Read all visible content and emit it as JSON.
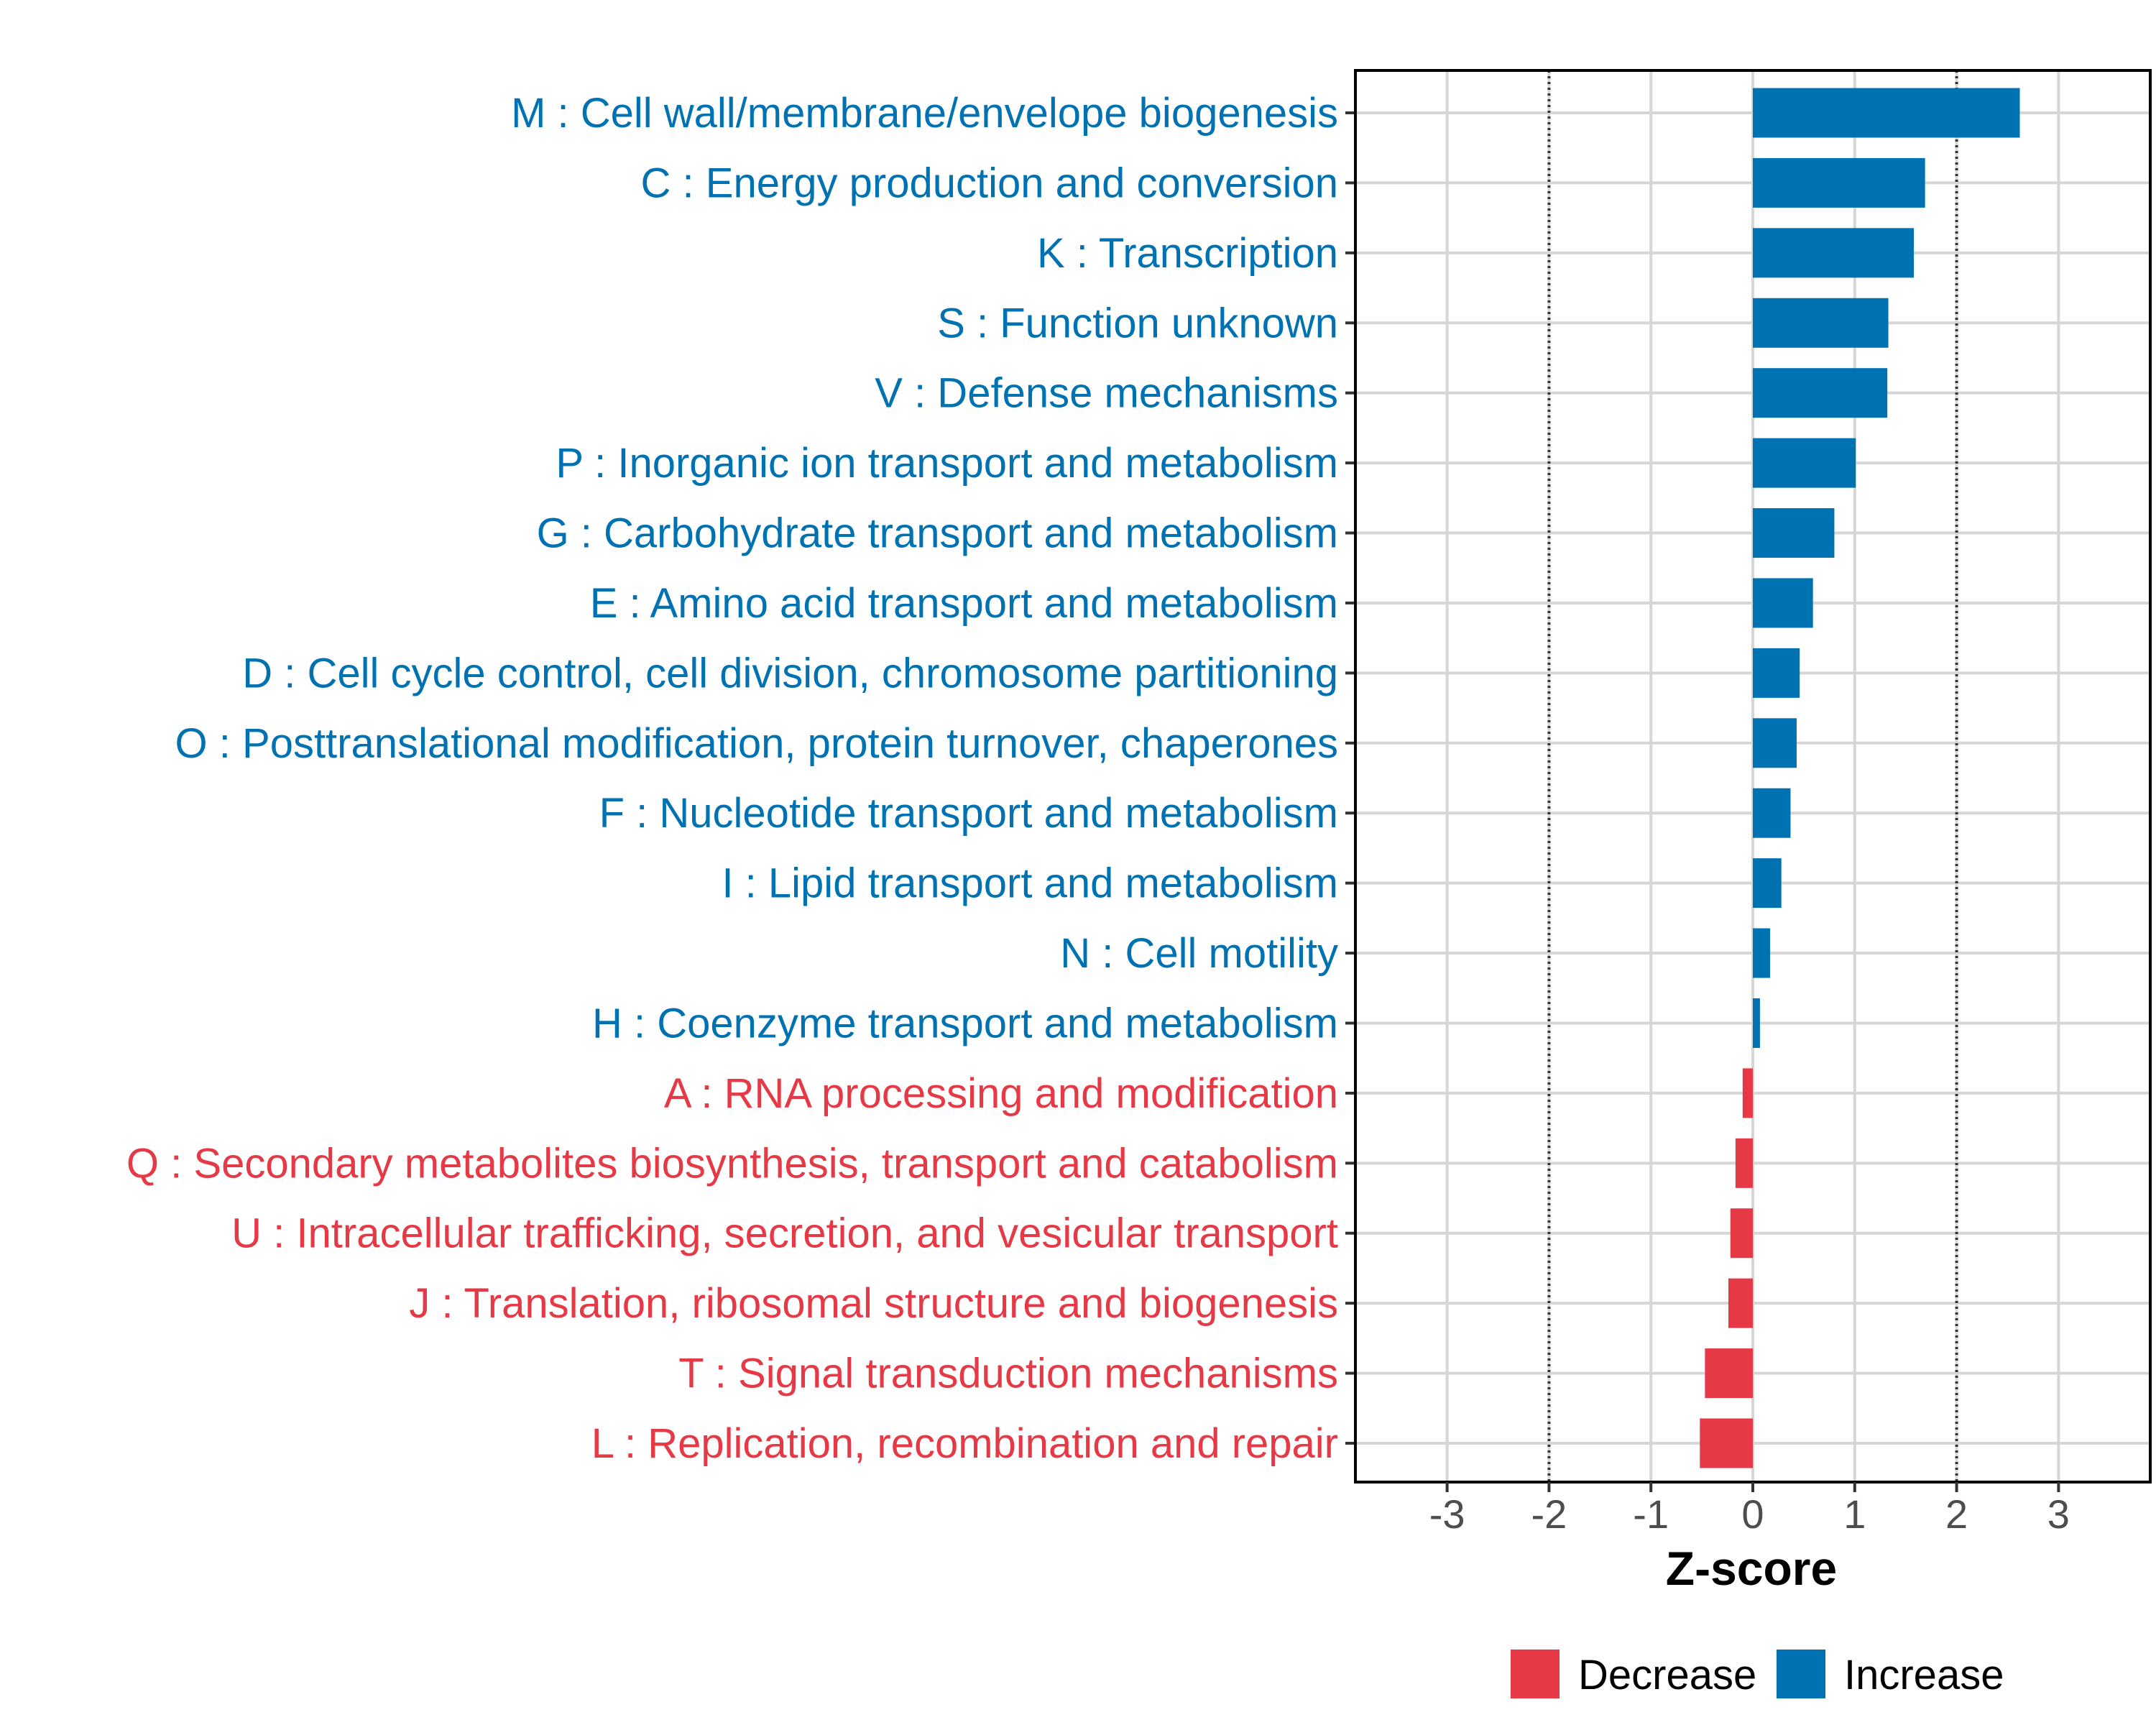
{
  "chart_data": {
    "type": "bar",
    "orientation": "horizontal",
    "title": "",
    "xlabel": "Z-score",
    "ylabel": "",
    "xlim": [
      -3.9,
      3.9
    ],
    "xticks": [
      -3,
      -2,
      -1,
      0,
      1,
      2,
      3
    ],
    "tick_labels": [
      "-3",
      "-2",
      "-1",
      "0",
      "1",
      "2",
      "3"
    ],
    "threshold_lines": [
      -2,
      2
    ],
    "grid": true,
    "legend_position": "bottom",
    "colors": {
      "Decrease": "#e63946",
      "Increase": "#0072b2"
    },
    "legend": [
      {
        "label": "Decrease",
        "color": "#e63946"
      },
      {
        "label": "Increase",
        "color": "#0072b2"
      }
    ],
    "categories": [
      "M : Cell wall/membrane/envelope biogenesis",
      "C : Energy production and conversion",
      "K : Transcription",
      "S : Function unknown",
      "V : Defense mechanisms",
      "P : Inorganic ion transport and metabolism",
      "G : Carbohydrate transport and metabolism",
      "E : Amino acid transport and metabolism",
      "D : Cell cycle control, cell division, chromosome partitioning",
      "O : Posttranslational modification, protein turnover, chaperones",
      "F : Nucleotide transport and metabolism",
      "I : Lipid transport and metabolism",
      "N : Cell motility",
      "H : Coenzyme transport and metabolism",
      "A : RNA processing and modification",
      "Q : Secondary metabolites biosynthesis, transport and catabolism",
      "U : Intracellular trafficking, secretion, and vesicular transport",
      "J : Translation, ribosomal structure and biogenesis",
      "T : Signal transduction mechanisms",
      "L : Replication, recombination and repair"
    ],
    "values": [
      2.62,
      1.69,
      1.58,
      1.33,
      1.32,
      1.01,
      0.8,
      0.59,
      0.46,
      0.43,
      0.37,
      0.28,
      0.17,
      0.07,
      -0.1,
      -0.17,
      -0.22,
      -0.24,
      -0.47,
      -0.52
    ],
    "groups": [
      "Increase",
      "Increase",
      "Increase",
      "Increase",
      "Increase",
      "Increase",
      "Increase",
      "Increase",
      "Increase",
      "Increase",
      "Increase",
      "Increase",
      "Increase",
      "Increase",
      "Decrease",
      "Decrease",
      "Decrease",
      "Decrease",
      "Decrease",
      "Decrease"
    ]
  }
}
